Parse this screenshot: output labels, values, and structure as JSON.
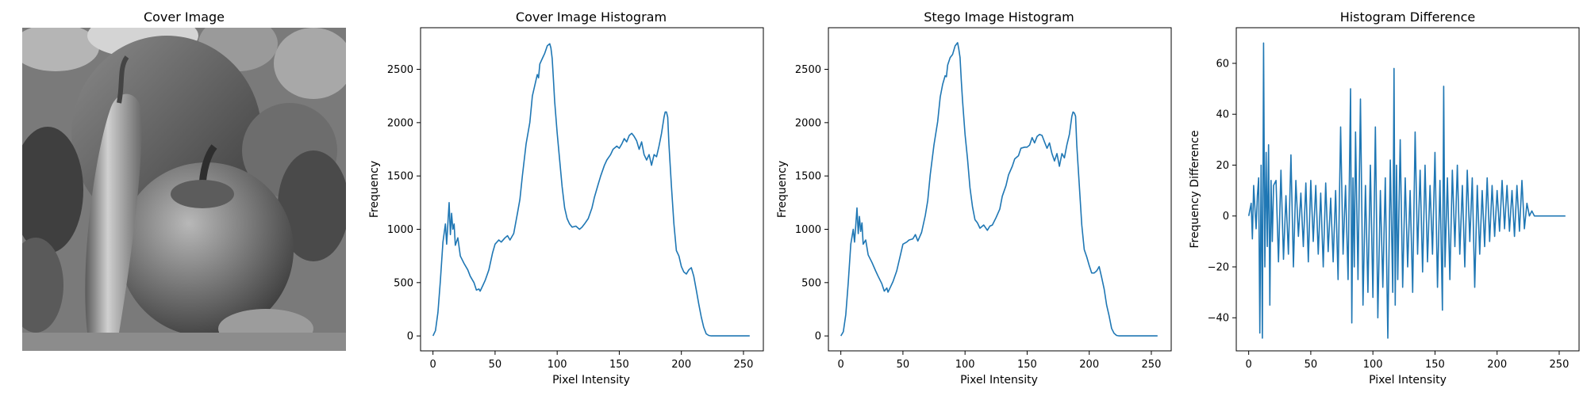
{
  "panels": {
    "image": {
      "title": "Cover Image"
    },
    "cover": {
      "title": "Cover Image Histogram",
      "xlabel": "Pixel Intensity",
      "ylabel": "Frequency"
    },
    "stego": {
      "title": "Stego Image Histogram",
      "xlabel": "Pixel Intensity",
      "ylabel": "Frequency"
    },
    "diff": {
      "title": "Histogram Difference",
      "xlabel": "Pixel Intensity",
      "ylabel": "Frequency Difference"
    }
  },
  "colors": {
    "line": "#1f77b4",
    "axis": "#000000",
    "background": "#ffffff"
  },
  "chart_data": [
    {
      "type": "line",
      "title": "Cover Image Histogram",
      "xlabel": "Pixel Intensity",
      "ylabel": "Frequency",
      "xlim": [
        -10,
        266
      ],
      "ylim": [
        -140,
        2890
      ],
      "xticks": [
        0,
        50,
        100,
        150,
        200,
        250
      ],
      "yticks": [
        0,
        500,
        1000,
        1500,
        2000,
        2500
      ],
      "grid": false,
      "series": [
        {
          "x": [
            0,
            2,
            4,
            6,
            8,
            10,
            11,
            12,
            13,
            14,
            15,
            16,
            17,
            18,
            20,
            22,
            25,
            28,
            30,
            33,
            35,
            37,
            38,
            40,
            42,
            45,
            48,
            50,
            53,
            55,
            58,
            60,
            62,
            65,
            68,
            70,
            72,
            75,
            78,
            80,
            82,
            84,
            85,
            86,
            88,
            90,
            92,
            94,
            95,
            96,
            97,
            98,
            100,
            102,
            104,
            106,
            108,
            110,
            112,
            115,
            118,
            120,
            122,
            125,
            128,
            130,
            133,
            135,
            138,
            140,
            143,
            145,
            148,
            150,
            152,
            154,
            156,
            158,
            160,
            162,
            164,
            166,
            168,
            170,
            172,
            174,
            176,
            178,
            180,
            182,
            184,
            186,
            187,
            188,
            189,
            190,
            192,
            194,
            196,
            198,
            200,
            202,
            204,
            206,
            208,
            210,
            212,
            214,
            216,
            218,
            220,
            222,
            224,
            226,
            230,
            235,
            240,
            245,
            250,
            255
          ],
          "y": [
            0,
            50,
            220,
            520,
            880,
            1050,
            860,
            1050,
            1250,
            950,
            1150,
            1000,
            1050,
            850,
            920,
            750,
            680,
            620,
            560,
            500,
            430,
            440,
            420,
            470,
            520,
            620,
            780,
            860,
            900,
            880,
            920,
            940,
            900,
            960,
            1150,
            1280,
            1500,
            1800,
            2000,
            2250,
            2350,
            2450,
            2420,
            2550,
            2600,
            2650,
            2720,
            2740,
            2700,
            2600,
            2400,
            2200,
            1900,
            1650,
            1400,
            1200,
            1100,
            1050,
            1020,
            1030,
            1000,
            1020,
            1050,
            1100,
            1200,
            1300,
            1420,
            1500,
            1600,
            1650,
            1700,
            1750,
            1780,
            1760,
            1800,
            1850,
            1820,
            1880,
            1900,
            1870,
            1830,
            1750,
            1820,
            1700,
            1650,
            1700,
            1600,
            1700,
            1680,
            1780,
            1900,
            2050,
            2100,
            2100,
            2050,
            1800,
            1400,
            1050,
            800,
            750,
            650,
            600,
            580,
            620,
            640,
            560,
            430,
            300,
            180,
            80,
            20,
            5,
            0,
            0,
            0,
            0,
            0,
            0,
            0,
            0
          ]
        }
      ]
    },
    {
      "type": "line",
      "title": "Stego Image Histogram",
      "xlabel": "Pixel Intensity",
      "ylabel": "Frequency",
      "xlim": [
        -10,
        266
      ],
      "ylim": [
        -140,
        2890
      ],
      "xticks": [
        0,
        50,
        100,
        150,
        200,
        250
      ],
      "yticks": [
        0,
        500,
        1000,
        1500,
        2000,
        2500
      ],
      "grid": false,
      "series": [
        {
          "x": [
            0,
            2,
            4,
            6,
            8,
            10,
            11,
            12,
            13,
            14,
            15,
            16,
            17,
            18,
            20,
            22,
            25,
            28,
            30,
            33,
            35,
            37,
            38,
            40,
            42,
            45,
            48,
            50,
            53,
            55,
            58,
            60,
            62,
            65,
            68,
            70,
            72,
            75,
            78,
            80,
            82,
            84,
            85,
            86,
            88,
            90,
            92,
            94,
            95,
            96,
            97,
            98,
            100,
            102,
            104,
            106,
            108,
            110,
            112,
            115,
            118,
            120,
            122,
            125,
            128,
            130,
            133,
            135,
            138,
            140,
            143,
            145,
            148,
            150,
            152,
            154,
            156,
            158,
            160,
            162,
            164,
            166,
            168,
            170,
            172,
            174,
            176,
            178,
            180,
            182,
            184,
            186,
            187,
            188,
            189,
            190,
            192,
            194,
            196,
            198,
            200,
            202,
            204,
            206,
            208,
            210,
            212,
            214,
            216,
            218,
            220,
            222,
            224,
            226,
            230,
            235,
            240,
            245,
            250,
            255
          ],
          "y": [
            0,
            40,
            200,
            500,
            860,
            1000,
            880,
            1030,
            1200,
            960,
            1120,
            980,
            1060,
            860,
            900,
            760,
            690,
            610,
            560,
            490,
            420,
            450,
            410,
            460,
            510,
            610,
            760,
            860,
            880,
            900,
            910,
            950,
            890,
            970,
            1130,
            1270,
            1510,
            1790,
            2010,
            2240,
            2360,
            2440,
            2430,
            2540,
            2610,
            2640,
            2720,
            2750,
            2690,
            2610,
            2390,
            2210,
            1890,
            1660,
            1390,
            1210,
            1090,
            1060,
            1010,
            1040,
            990,
            1030,
            1040,
            1110,
            1190,
            1310,
            1410,
            1510,
            1590,
            1660,
            1690,
            1760,
            1770,
            1770,
            1790,
            1860,
            1810,
            1870,
            1890,
            1880,
            1820,
            1760,
            1810,
            1710,
            1640,
            1710,
            1590,
            1710,
            1670,
            1790,
            1890,
            2060,
            2100,
            2090,
            2060,
            1790,
            1410,
            1040,
            810,
            740,
            660,
            590,
            590,
            610,
            650,
            550,
            440,
            290,
            190,
            70,
            25,
            5,
            0,
            0,
            0,
            0,
            0,
            0,
            0,
            0
          ]
        }
      ]
    },
    {
      "type": "line",
      "title": "Histogram Difference",
      "xlabel": "Pixel Intensity",
      "ylabel": "Frequency Difference",
      "xlim": [
        -10,
        266
      ],
      "ylim": [
        -53,
        74
      ],
      "xticks": [
        0,
        50,
        100,
        150,
        200,
        250
      ],
      "yticks": [
        -40,
        -20,
        0,
        20,
        40,
        60
      ],
      "grid": false,
      "series": [
        {
          "x": [
            0,
            2,
            3,
            4,
            5,
            6,
            7,
            8,
            9,
            10,
            11,
            12,
            13,
            14,
            15,
            16,
            17,
            18,
            19,
            20,
            22,
            24,
            26,
            28,
            30,
            32,
            34,
            36,
            38,
            40,
            42,
            44,
            46,
            48,
            50,
            52,
            54,
            56,
            58,
            60,
            62,
            64,
            66,
            68,
            70,
            72,
            74,
            76,
            78,
            80,
            82,
            83,
            84,
            85,
            86,
            88,
            90,
            92,
            94,
            96,
            98,
            100,
            102,
            104,
            106,
            108,
            110,
            112,
            114,
            116,
            117,
            118,
            119,
            120,
            122,
            124,
            126,
            128,
            130,
            132,
            134,
            136,
            138,
            140,
            142,
            144,
            146,
            148,
            150,
            152,
            154,
            156,
            157,
            158,
            160,
            162,
            164,
            166,
            168,
            170,
            172,
            174,
            176,
            178,
            180,
            182,
            184,
            186,
            188,
            190,
            192,
            194,
            196,
            198,
            200,
            202,
            204,
            206,
            208,
            210,
            212,
            214,
            216,
            218,
            220,
            222,
            224,
            226,
            228,
            230,
            240,
            255
          ],
          "y": [
            0,
            5,
            -9,
            12,
            3,
            -5,
            8,
            15,
            -46,
            20,
            -48,
            68,
            -20,
            25,
            -12,
            28,
            -35,
            14,
            -10,
            12,
            14,
            -18,
            18,
            -17,
            8,
            -15,
            24,
            -20,
            14,
            -8,
            9,
            -12,
            13,
            -18,
            14,
            -10,
            12,
            -15,
            9,
            -20,
            13,
            -14,
            7,
            -18,
            10,
            -25,
            35,
            -15,
            12,
            -25,
            50,
            -42,
            15,
            -20,
            33,
            -25,
            46,
            -35,
            12,
            -30,
            20,
            -32,
            35,
            -40,
            10,
            -28,
            15,
            -48,
            22,
            -30,
            58,
            -35,
            20,
            -25,
            30,
            -28,
            15,
            -20,
            10,
            -30,
            33,
            -15,
            18,
            -22,
            20,
            -18,
            12,
            -15,
            25,
            -28,
            14,
            -37,
            51,
            -20,
            15,
            -25,
            18,
            -12,
            20,
            -15,
            12,
            -20,
            18,
            -10,
            15,
            -28,
            12,
            -15,
            10,
            -12,
            15,
            -10,
            12,
            -8,
            10,
            -6,
            14,
            -5,
            12,
            -6,
            10,
            -8,
            12,
            -6,
            14,
            -5,
            5,
            0,
            2,
            0,
            0,
            0
          ]
        }
      ]
    }
  ]
}
